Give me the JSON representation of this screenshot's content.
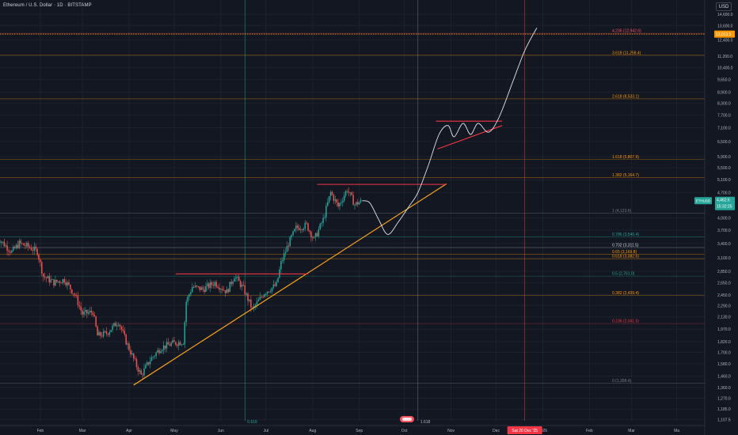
{
  "header": {
    "title": "Ethereum / U.S. Dollar · 1D · BITSTAMP",
    "currency_button": "USD"
  },
  "colors": {
    "background": "#131722",
    "grid": "#1e222d",
    "up": "#26a69a",
    "down": "#ef5350",
    "trendline": "#f7a21b",
    "resistance": "#f23645",
    "projection": "#e0e3eb",
    "target_line": "#ff9800",
    "axis_text": "#b2b5be"
  },
  "price_tags": {
    "current_label": "ETHUSD",
    "current_value": "4,462.6",
    "countdown": "15:32:25",
    "target_value": "13,013.5"
  },
  "marker_labels": {
    "vertical_1": "0.618",
    "vertical_2": "1.618",
    "date_tag": "Sat 20 Dec '25"
  },
  "chart_data": {
    "type": "candlestick",
    "y_scale": "log",
    "ylim": [
      1100,
      16000
    ],
    "y_ticks": [
      {
        "label": "14,600.0",
        "v": 14600
      },
      {
        "label": "13,600.0",
        "v": 13600
      },
      {
        "label": "12,400.0",
        "v": 12400
      },
      {
        "label": "11,200.0",
        "v": 11200
      },
      {
        "label": "10,400.0",
        "v": 10400
      },
      {
        "label": "9,650.0",
        "v": 9650
      },
      {
        "label": "8,900.0",
        "v": 8900
      },
      {
        "label": "8,300.0",
        "v": 8300
      },
      {
        "label": "7,700.0",
        "v": 7700
      },
      {
        "label": "7,100.0",
        "v": 7100
      },
      {
        "label": "6,500.0",
        "v": 6500
      },
      {
        "label": "5,900.0",
        "v": 5900
      },
      {
        "label": "5,500.0",
        "v": 5500
      },
      {
        "label": "5,100.0",
        "v": 5100
      },
      {
        "label": "4,700.0",
        "v": 4700
      },
      {
        "label": "4,000.0",
        "v": 4000
      },
      {
        "label": "3,700.0",
        "v": 3700
      },
      {
        "label": "3,400.0",
        "v": 3400
      },
      {
        "label": "3,100.0",
        "v": 3100
      },
      {
        "label": "2,850.0",
        "v": 2850
      },
      {
        "label": "2,650.0",
        "v": 2650
      },
      {
        "label": "2,450.0",
        "v": 2450
      },
      {
        "label": "2,290.0",
        "v": 2290
      },
      {
        "label": "2,130.0",
        "v": 2130
      },
      {
        "label": "1,970.0",
        "v": 1970
      },
      {
        "label": "1,820.0",
        "v": 1820
      },
      {
        "label": "1,700.0",
        "v": 1700
      },
      {
        "label": "1,580.0",
        "v": 1580
      },
      {
        "label": "1,460.0",
        "v": 1460
      },
      {
        "label": "1,360.0",
        "v": 1360
      },
      {
        "label": "1,270.0",
        "v": 1270
      },
      {
        "label": "1,185.0",
        "v": 1185
      },
      {
        "label": "1,107.5",
        "v": 1107.5
      }
    ],
    "x_ticks": [
      {
        "label": "Feb",
        "d": "2025-02-01"
      },
      {
        "label": "Mar",
        "d": "2025-03-01"
      },
      {
        "label": "Apr",
        "d": "2025-04-01"
      },
      {
        "label": "May",
        "d": "2025-05-01"
      },
      {
        "label": "Jun",
        "d": "2025-06-01"
      },
      {
        "label": "Jul",
        "d": "2025-07-01"
      },
      {
        "label": "Aug",
        "d": "2025-08-01"
      },
      {
        "label": "Sep",
        "d": "2025-09-01"
      },
      {
        "label": "Oct",
        "d": "2025-10-01"
      },
      {
        "label": "Nov",
        "d": "2025-11-01"
      },
      {
        "label": "Dec",
        "d": "2025-12-01"
      },
      {
        "label": "2026",
        "d": "2026-01-01"
      },
      {
        "label": "Feb",
        "d": "2026-02-01"
      },
      {
        "label": "Mar",
        "d": "2026-03-01"
      },
      {
        "label": "Ma",
        "d": "2026-03-31"
      }
    ],
    "fib_levels": [
      {
        "label": "4.236 (12,942.6)",
        "v": 12942.6,
        "color": "#f7525f"
      },
      {
        "label": "3.618 (11,258.4)",
        "v": 11258.4,
        "color": "#ff9800"
      },
      {
        "label": "2.618 (8,533.1)",
        "v": 8533.1,
        "color": "#ff9800"
      },
      {
        "label": "1.618 (5,807.9)",
        "v": 5807.9,
        "color": "#ff9800"
      },
      {
        "label": "1.382 (5,164.7)",
        "v": 5164.7,
        "color": "#ff9800"
      },
      {
        "label": "1 (4,123.6)",
        "v": 4123.6,
        "color": "#787b86"
      },
      {
        "label": "0.786 (3,540.4)",
        "v": 3540.4,
        "color": "#26a69a"
      },
      {
        "label": "0.702 (3,311.5)",
        "v": 3311.5,
        "color": "#d1d4dc"
      },
      {
        "label": "0.65 (3,169.8)",
        "v": 3169.8,
        "color": "#ff9800"
      },
      {
        "label": "0.618 (3,082.6)",
        "v": 3082.6,
        "color": "#ff9800"
      },
      {
        "label": "0.5 (2,761.0)",
        "v": 2761.0,
        "color": "#22ab94"
      },
      {
        "label": "0.382 (2,439.4)",
        "v": 2439.4,
        "color": "#ff9800"
      },
      {
        "label": "0.236 (2,041.5)",
        "v": 2041.5,
        "color": "#f23645"
      },
      {
        "label": "0 (1,398.4)",
        "v": 1398.4,
        "color": "#787b86"
      }
    ],
    "close_path": [
      {
        "d": "2025-01-03",
        "v": 3550
      },
      {
        "d": "2025-01-08",
        "v": 3380
      },
      {
        "d": "2025-01-13",
        "v": 3220
      },
      {
        "d": "2025-01-18",
        "v": 3400
      },
      {
        "d": "2025-01-24",
        "v": 3330
      },
      {
        "d": "2025-01-30",
        "v": 3230
      },
      {
        "d": "2025-02-03",
        "v": 2760
      },
      {
        "d": "2025-02-10",
        "v": 2650
      },
      {
        "d": "2025-02-17",
        "v": 2700
      },
      {
        "d": "2025-02-24",
        "v": 2450
      },
      {
        "d": "2025-03-01",
        "v": 2170
      },
      {
        "d": "2025-03-08",
        "v": 2200
      },
      {
        "d": "2025-03-11",
        "v": 1890
      },
      {
        "d": "2025-03-17",
        "v": 1920
      },
      {
        "d": "2025-03-25",
        "v": 2070
      },
      {
        "d": "2025-03-30",
        "v": 1820
      },
      {
        "d": "2025-04-06",
        "v": 1560
      },
      {
        "d": "2025-04-09",
        "v": 1470
      },
      {
        "d": "2025-04-15",
        "v": 1620
      },
      {
        "d": "2025-04-22",
        "v": 1750
      },
      {
        "d": "2025-04-30",
        "v": 1800
      },
      {
        "d": "2025-05-07",
        "v": 1820
      },
      {
        "d": "2025-05-09",
        "v": 2350
      },
      {
        "d": "2025-05-13",
        "v": 2580
      },
      {
        "d": "2025-05-20",
        "v": 2540
      },
      {
        "d": "2025-05-28",
        "v": 2650
      },
      {
        "d": "2025-06-05",
        "v": 2500
      },
      {
        "d": "2025-06-10",
        "v": 2770
      },
      {
        "d": "2025-06-16",
        "v": 2550
      },
      {
        "d": "2025-06-22",
        "v": 2230
      },
      {
        "d": "2025-06-30",
        "v": 2490
      },
      {
        "d": "2025-07-08",
        "v": 2610
      },
      {
        "d": "2025-07-11",
        "v": 3000
      },
      {
        "d": "2025-07-16",
        "v": 3400
      },
      {
        "d": "2025-07-21",
        "v": 3750
      },
      {
        "d": "2025-07-28",
        "v": 3820
      },
      {
        "d": "2025-08-02",
        "v": 3480
      },
      {
        "d": "2025-08-08",
        "v": 3950
      },
      {
        "d": "2025-08-13",
        "v": 4700
      },
      {
        "d": "2025-08-18",
        "v": 4300
      },
      {
        "d": "2025-08-24",
        "v": 4800
      },
      {
        "d": "2025-08-29",
        "v": 4350
      },
      {
        "d": "2025-09-03",
        "v": 4462.6
      }
    ],
    "projection": [
      {
        "d": "2025-09-03",
        "v": 4462.6
      },
      {
        "d": "2025-09-08",
        "v": 4400
      },
      {
        "d": "2025-09-14",
        "v": 3950
      },
      {
        "d": "2025-09-20",
        "v": 3600
      },
      {
        "d": "2025-09-27",
        "v": 3900
      },
      {
        "d": "2025-10-04",
        "v": 4300
      },
      {
        "d": "2025-10-10",
        "v": 4700
      },
      {
        "d": "2025-10-17",
        "v": 5600
      },
      {
        "d": "2025-10-24",
        "v": 6800
      },
      {
        "d": "2025-10-30",
        "v": 7200
      },
      {
        "d": "2025-11-03",
        "v": 6700
      },
      {
        "d": "2025-11-09",
        "v": 7300
      },
      {
        "d": "2025-11-14",
        "v": 6800
      },
      {
        "d": "2025-11-19",
        "v": 7300
      },
      {
        "d": "2025-11-26",
        "v": 6900
      },
      {
        "d": "2025-12-03",
        "v": 7600
      },
      {
        "d": "2025-12-12",
        "v": 9500
      },
      {
        "d": "2025-12-20",
        "v": 11600
      },
      {
        "d": "2025-12-28",
        "v": 13400
      }
    ],
    "trendline_support": {
      "from": {
        "d": "2025-04-04",
        "v": 1380
      },
      "to": {
        "d": "2025-10-29",
        "v": 4970
      }
    },
    "resistance_lines": [
      {
        "from": {
          "d": "2025-05-02",
          "v": 2800
        },
        "to": {
          "d": "2025-07-29",
          "v": 2800
        }
      },
      {
        "from": {
          "d": "2025-08-04",
          "v": 4950
        },
        "to": {
          "d": "2025-10-29",
          "v": 4950
        }
      },
      {
        "from": {
          "d": "2025-10-22",
          "v": 7400
        },
        "to": {
          "d": "2025-12-05",
          "v": 7400
        }
      }
    ],
    "pattern_lines": [
      {
        "from": {
          "d": "2025-10-23",
          "v": 6200
        },
        "to": {
          "d": "2025-12-05",
          "v": 7200
        }
      }
    ],
    "vertical_markers": [
      {
        "d": "2025-06-17",
        "label": "0.618",
        "color": "#26a69a"
      },
      {
        "d": "2025-10-10",
        "label": "1.618",
        "color": "#787b86"
      },
      {
        "d": "2025-12-20",
        "label": "Sat 20 Dec '25",
        "color": "#f23645"
      }
    ]
  }
}
